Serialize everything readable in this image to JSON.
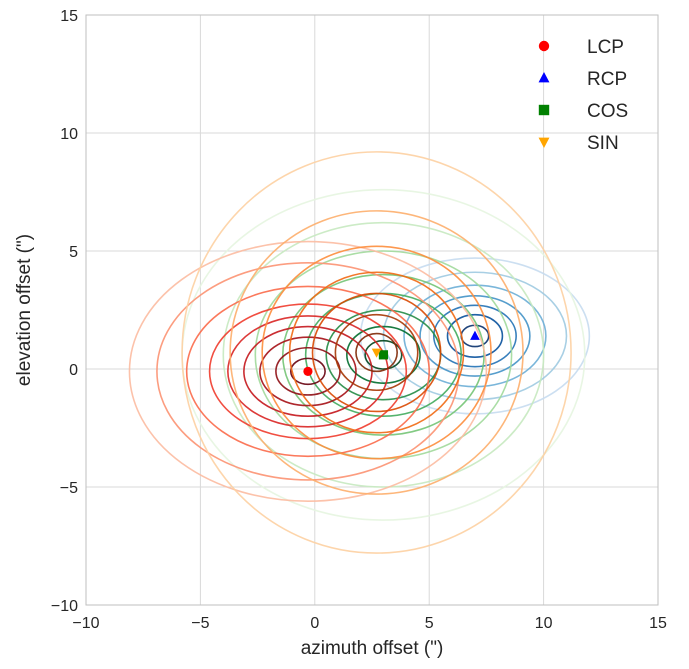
{
  "chart_data": {
    "type": "scatter",
    "subtype": "kde-contour",
    "title": "",
    "xlabel": "azimuth offset (\")",
    "ylabel": "elevation offset (\")",
    "xlim": [
      -10,
      15
    ],
    "ylim": [
      -10,
      15
    ],
    "xticks": [
      -10,
      -5,
      0,
      5,
      10,
      15
    ],
    "yticks": [
      -10,
      -5,
      0,
      5,
      10,
      15
    ],
    "x_tick_labels": [
      "−10",
      "−5",
      "0",
      "5",
      "10",
      "15"
    ],
    "y_tick_labels": [
      "−10",
      "−5",
      "0",
      "5",
      "10",
      "15"
    ],
    "grid": true,
    "legend_position": "top-right",
    "series": [
      {
        "name": "LCP",
        "marker": "circle",
        "marker_color": "#ff0000",
        "contour_colormap": "Reds",
        "center": {
          "x": -0.3,
          "y": -0.1
        },
        "contour_levels": [
          {
            "rx": 0.75,
            "ry": 0.55,
            "color": "#67000d"
          },
          {
            "rx": 1.4,
            "ry": 1.0,
            "color": "#8e0d13"
          },
          {
            "rx": 2.1,
            "ry": 1.45,
            "color": "#a50f15"
          },
          {
            "rx": 2.8,
            "ry": 1.9,
            "color": "#c4161c"
          },
          {
            "rx": 3.5,
            "ry": 2.35,
            "color": "#d92523"
          },
          {
            "rx": 4.3,
            "ry": 2.85,
            "color": "#ef3b2c"
          },
          {
            "rx": 5.3,
            "ry": 3.6,
            "color": "#fb6a4a"
          },
          {
            "rx": 6.6,
            "ry": 4.6,
            "color": "#fc9272"
          },
          {
            "rx": 7.8,
            "ry": 5.5,
            "color": "#fcbba1"
          }
        ]
      },
      {
        "name": "RCP",
        "marker": "triangle-up",
        "marker_color": "#0000ff",
        "contour_colormap": "Blues",
        "center": {
          "x": 7.0,
          "y": 1.4
        },
        "contour_levels": [
          {
            "rx": 0.6,
            "ry": 0.45,
            "color": "#08306b"
          },
          {
            "rx": 1.2,
            "ry": 0.9,
            "color": "#08519c"
          },
          {
            "rx": 1.8,
            "ry": 1.3,
            "color": "#2171b5"
          },
          {
            "rx": 2.4,
            "ry": 1.7,
            "color": "#4292c6"
          },
          {
            "rx": 3.1,
            "ry": 2.15,
            "color": "#6baed6"
          },
          {
            "rx": 4.0,
            "ry": 2.7,
            "color": "#9ecae1"
          },
          {
            "rx": 5.0,
            "ry": 3.3,
            "color": "#c6dbef"
          }
        ]
      },
      {
        "name": "COS",
        "marker": "square",
        "marker_color": "#008000",
        "contour_colormap": "Greens",
        "center": {
          "x": 3.0,
          "y": 0.6
        },
        "contour_levels": [
          {
            "rx": 0.8,
            "ry": 0.6,
            "color": "#00441b"
          },
          {
            "rx": 1.6,
            "ry": 1.2,
            "color": "#006d2c"
          },
          {
            "rx": 2.5,
            "ry": 1.9,
            "color": "#238b45"
          },
          {
            "rx": 3.4,
            "ry": 2.6,
            "color": "#41ab5d"
          },
          {
            "rx": 4.4,
            "ry": 3.4,
            "color": "#74c476"
          },
          {
            "rx": 5.6,
            "ry": 4.4,
            "color": "#a1d99b"
          },
          {
            "rx": 7.0,
            "ry": 5.6,
            "color": "#c7e9c0"
          },
          {
            "rx": 8.8,
            "ry": 7.0,
            "color": "#e5f5e0"
          }
        ]
      },
      {
        "name": "SIN",
        "marker": "triangle-down",
        "marker_color": "#ffa500",
        "contour_colormap": "Oranges",
        "center": {
          "x": 2.7,
          "y": 0.7
        },
        "contour_levels": [
          {
            "rx": 0.9,
            "ry": 0.8,
            "color": "#7f2704"
          },
          {
            "rx": 1.8,
            "ry": 1.6,
            "color": "#a63603"
          },
          {
            "rx": 2.8,
            "ry": 2.5,
            "color": "#d94801"
          },
          {
            "rx": 3.8,
            "ry": 3.4,
            "color": "#f16913"
          },
          {
            "rx": 5.0,
            "ry": 4.5,
            "color": "#fd8d3c"
          },
          {
            "rx": 6.4,
            "ry": 6.0,
            "color": "#fdae6b"
          },
          {
            "rx": 8.5,
            "ry": 8.5,
            "color": "#fdd0a2"
          }
        ]
      }
    ]
  }
}
